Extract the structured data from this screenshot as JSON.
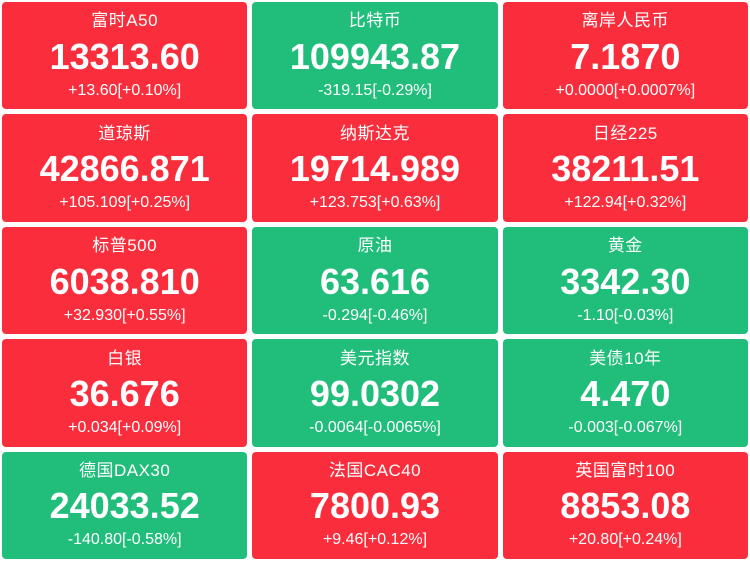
{
  "colors": {
    "up": "#fa2d3c",
    "down": "#21bd7a",
    "text": "#ffffff",
    "page_background": "#ffffff"
  },
  "tiles": [
    {
      "name": "富时A50",
      "value": "13313.60",
      "change": "+13.60[+0.10%]",
      "direction": "up"
    },
    {
      "name": "比特币",
      "value": "109943.87",
      "change": "-319.15[-0.29%]",
      "direction": "down"
    },
    {
      "name": "离岸人民币",
      "value": "7.1870",
      "change": "+0.0000[+0.0007%]",
      "direction": "up"
    },
    {
      "name": "道琼斯",
      "value": "42866.871",
      "change": "+105.109[+0.25%]",
      "direction": "up"
    },
    {
      "name": "纳斯达克",
      "value": "19714.989",
      "change": "+123.753[+0.63%]",
      "direction": "up"
    },
    {
      "name": "日经225",
      "value": "38211.51",
      "change": "+122.94[+0.32%]",
      "direction": "up"
    },
    {
      "name": "标普500",
      "value": "6038.810",
      "change": "+32.930[+0.55%]",
      "direction": "up"
    },
    {
      "name": "原油",
      "value": "63.616",
      "change": "-0.294[-0.46%]",
      "direction": "down"
    },
    {
      "name": "黄金",
      "value": "3342.30",
      "change": "-1.10[-0.03%]",
      "direction": "down"
    },
    {
      "name": "白银",
      "value": "36.676",
      "change": "+0.034[+0.09%]",
      "direction": "up"
    },
    {
      "name": "美元指数",
      "value": "99.0302",
      "change": "-0.0064[-0.0065%]",
      "direction": "down"
    },
    {
      "name": "美债10年",
      "value": "4.470",
      "change": "-0.003[-0.067%]",
      "direction": "down"
    },
    {
      "name": "德国DAX30",
      "value": "24033.52",
      "change": "-140.80[-0.58%]",
      "direction": "down"
    },
    {
      "name": "法国CAC40",
      "value": "7800.93",
      "change": "+9.46[+0.12%]",
      "direction": "up"
    },
    {
      "name": "英国富时100",
      "value": "8853.08",
      "change": "+20.80[+0.24%]",
      "direction": "up"
    }
  ]
}
